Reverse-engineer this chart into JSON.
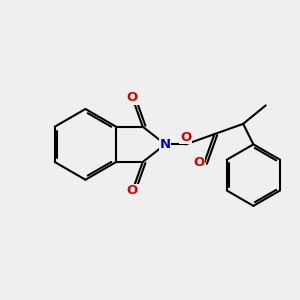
{
  "background_color": "#efefef",
  "bond_color": "#000000",
  "N_color": "#0000dd",
  "O_color": "#dd0000",
  "line_width": 1.5,
  "sep": 0.028,
  "font_size": 9.5,
  "xlim": [
    -1.3,
    1.6
  ],
  "ylim": [
    -1.05,
    1.1
  ]
}
